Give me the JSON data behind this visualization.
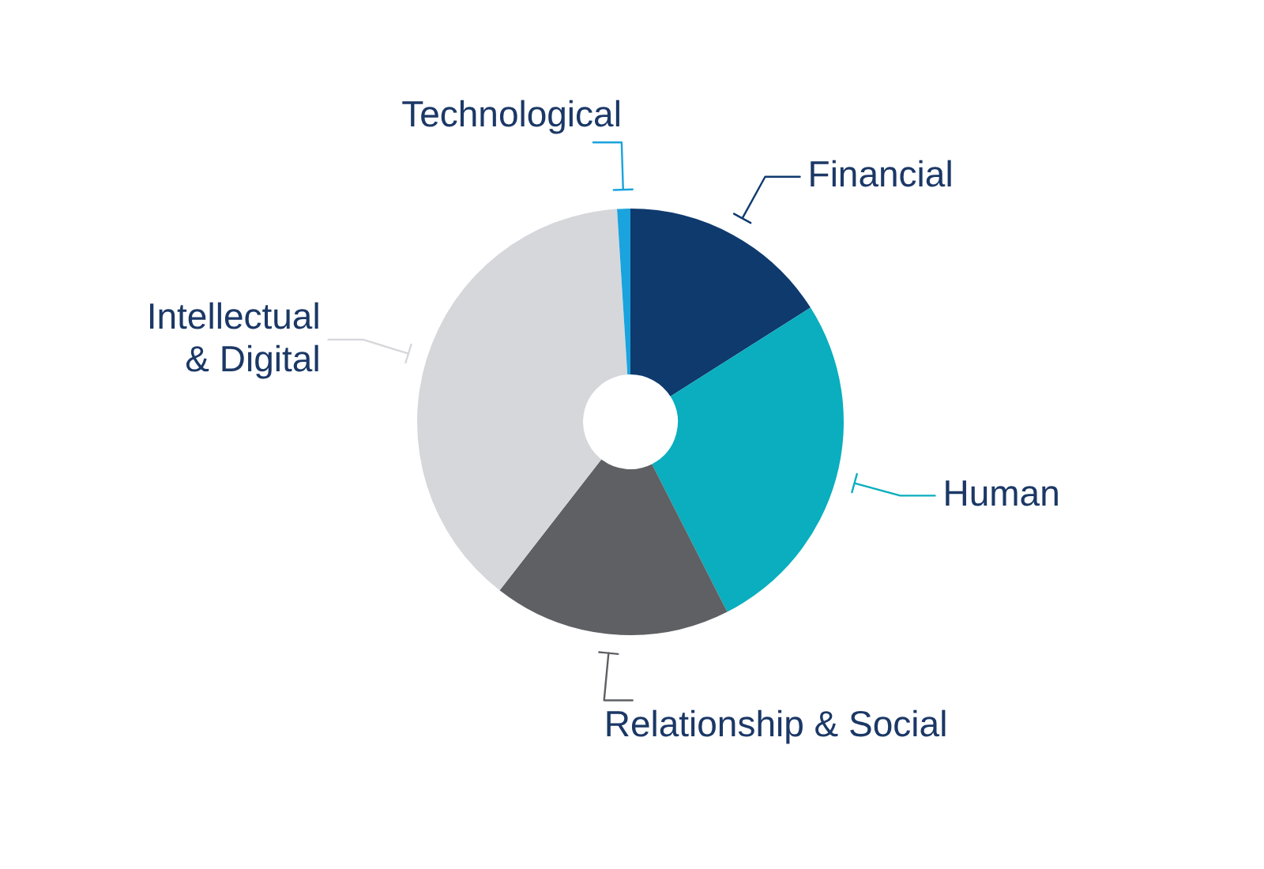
{
  "chart_data": {
    "type": "donut",
    "categories": [
      "Financial",
      "Human",
      "Relationship & Social",
      "Intellectual & Digital",
      "Technological"
    ],
    "values": [
      16,
      26.5,
      18,
      38.5,
      1
    ],
    "colors": [
      "#0e3a6e",
      "#0aaebe",
      "#5e6064",
      "#d6d7db",
      "#1aa3dd"
    ]
  }
}
